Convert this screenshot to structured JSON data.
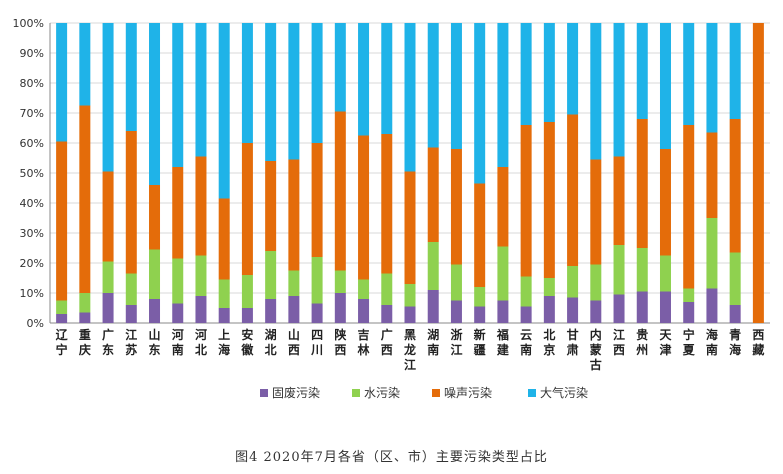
{
  "chart_data": {
    "type": "bar",
    "stacked": "percent",
    "categories": [
      "辽宁",
      "重庆",
      "广东",
      "江苏",
      "山东",
      "河南",
      "河北",
      "上海",
      "安徽",
      "湖北",
      "山西",
      "四川",
      "陕西",
      "吉林",
      "广西",
      "黑龙江",
      "湖南",
      "浙江",
      "新疆",
      "福建",
      "云南",
      "北京",
      "甘肃",
      "内蒙古",
      "江西",
      "贵州",
      "天津",
      "宁夏",
      "海南",
      "青海",
      "西藏"
    ],
    "yticks": [
      "0%",
      "10%",
      "20%",
      "30%",
      "40%",
      "50%",
      "60%",
      "70%",
      "80%",
      "90%",
      "100%"
    ],
    "ylim": [
      0,
      100
    ],
    "grid": true,
    "legend_position": "bottom",
    "series": [
      {
        "name": "固废污染",
        "color": "#7b5ea7",
        "values": [
          3,
          3.5,
          10,
          6,
          8,
          6.5,
          9,
          5,
          5,
          8,
          9,
          6.5,
          10,
          8,
          6,
          5.5,
          11,
          7.5,
          5.5,
          7.5,
          5.5,
          9,
          8.5,
          7.5,
          9.5,
          10.5,
          10.5,
          7,
          11.5,
          6,
          0
        ]
      },
      {
        "name": "水污染",
        "color": "#8fd14f",
        "values": [
          4.5,
          6.5,
          10.5,
          10.5,
          16.5,
          15,
          13.5,
          9.5,
          11,
          16,
          8.5,
          15.5,
          7.5,
          6.5,
          10.5,
          7.5,
          16,
          12,
          6.5,
          18,
          10,
          6,
          10.5,
          12,
          16.5,
          14.5,
          12,
          4.5,
          23.5,
          17.5,
          0
        ]
      },
      {
        "name": "噪声污染",
        "color": "#e46c0a",
        "values": [
          53,
          62.5,
          30,
          47.5,
          21.5,
          30.5,
          33,
          27,
          44,
          30,
          37,
          38,
          53,
          48,
          46.5,
          37.5,
          31.5,
          38.5,
          34.5,
          26.5,
          50.5,
          52,
          50.5,
          35,
          29.5,
          43,
          35.5,
          54.5,
          28.5,
          44.5,
          100
        ]
      },
      {
        "name": "大气污染",
        "color": "#1fb3e8",
        "values": [
          39.5,
          27.5,
          49.5,
          36,
          54,
          48,
          44.5,
          58.5,
          40,
          46,
          45.5,
          40,
          29.5,
          37.5,
          37,
          49.5,
          41.5,
          42,
          53.5,
          48,
          34,
          33,
          30.5,
          45.5,
          44.5,
          32,
          42,
          34,
          36.5,
          32,
          0
        ]
      }
    ]
  },
  "caption": "图4   2020年7月各省（区、市）主要污染类型占比"
}
